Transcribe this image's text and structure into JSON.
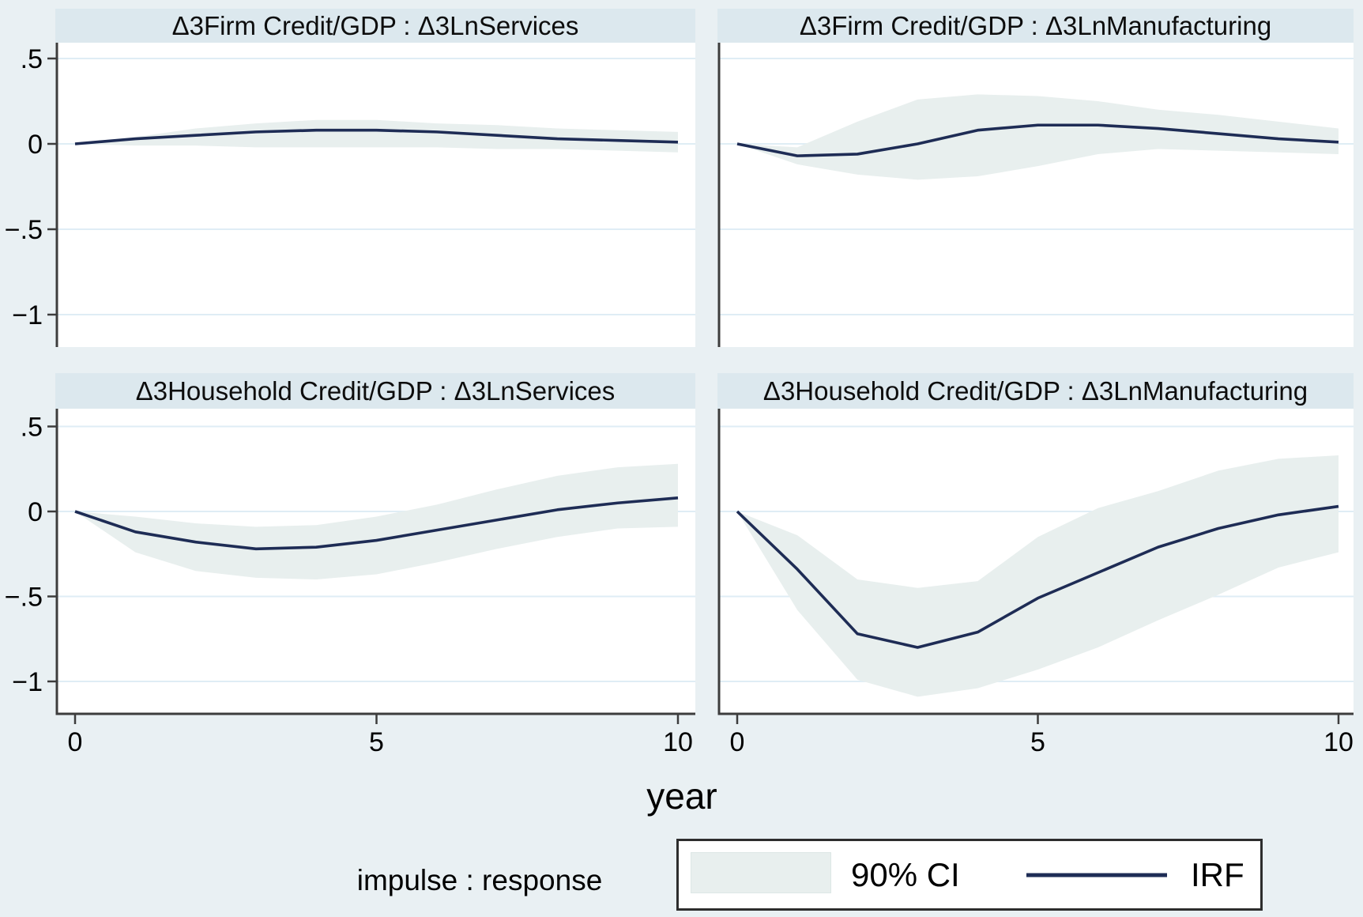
{
  "figure": {
    "caption": "impulse : response",
    "legend": [
      {
        "swatch": "area",
        "label": "90% CI"
      },
      {
        "swatch": "line",
        "label": "IRF"
      }
    ]
  },
  "colors": {
    "page_background": "#e9f0f3",
    "title_band": "#dce8ee",
    "plot_background": "#ffffff",
    "gridline": "#dfedf5",
    "ci_fill": "#e8efee",
    "irf_line": "#1e2c55",
    "axis": "#3d3d3d",
    "text": "#000000",
    "legend_border": "#2d2d2d"
  },
  "chart_data": {
    "type": "area",
    "description": "2x2 grid of impulse response function panels with 90% confidence bands",
    "x": [
      0,
      1,
      2,
      3,
      4,
      5,
      6,
      7,
      8,
      9,
      10
    ],
    "xlabel": "year",
    "x_ticks": [
      0,
      5,
      10
    ],
    "x_tick_labels": [
      "0",
      "5",
      "10"
    ],
    "y_ticks": [
      0.5,
      0,
      -0.5,
      -1
    ],
    "y_tick_labels": [
      ".5",
      "0",
      "−.5",
      "−1"
    ],
    "ylim": [
      -1.19,
      0.6
    ],
    "grid": "horizontal",
    "legend_position": "bottom-right",
    "panels": [
      {
        "title": "Δ3Firm Credit/GDP : Δ3LnServices",
        "impulse": "Δ3Firm Credit/GDP",
        "response": "Δ3LnServices",
        "irf": [
          0,
          0.03,
          0.05,
          0.07,
          0.08,
          0.08,
          0.07,
          0.05,
          0.03,
          0.02,
          0.01
        ],
        "ci_upper": [
          0,
          0.04,
          0.09,
          0.12,
          0.14,
          0.14,
          0.12,
          0.11,
          0.09,
          0.08,
          0.07
        ],
        "ci_lower": [
          0,
          -0.01,
          -0.01,
          -0.02,
          -0.02,
          -0.02,
          -0.02,
          -0.03,
          -0.03,
          -0.04,
          -0.05
        ]
      },
      {
        "title": "Δ3Firm Credit/GDP : Δ3LnManufacturing",
        "impulse": "Δ3Firm Credit/GDP",
        "response": "Δ3LnManufacturing",
        "irf": [
          0,
          -0.07,
          -0.06,
          0.0,
          0.08,
          0.11,
          0.11,
          0.09,
          0.06,
          0.03,
          0.01
        ],
        "ci_upper": [
          0,
          -0.02,
          0.13,
          0.26,
          0.29,
          0.28,
          0.25,
          0.2,
          0.17,
          0.13,
          0.09
        ],
        "ci_lower": [
          0,
          -0.12,
          -0.18,
          -0.21,
          -0.19,
          -0.13,
          -0.06,
          -0.03,
          -0.04,
          -0.05,
          -0.06
        ]
      },
      {
        "title": "Δ3Household Credit/GDP : Δ3LnServices",
        "impulse": "Δ3Household Credit/GDP",
        "response": "Δ3LnServices",
        "irf": [
          0,
          -0.12,
          -0.18,
          -0.22,
          -0.21,
          -0.17,
          -0.11,
          -0.05,
          0.01,
          0.05,
          0.08
        ],
        "ci_upper": [
          0,
          -0.03,
          -0.07,
          -0.09,
          -0.08,
          -0.03,
          0.04,
          0.13,
          0.21,
          0.26,
          0.28
        ],
        "ci_lower": [
          0,
          -0.24,
          -0.35,
          -0.39,
          -0.4,
          -0.37,
          -0.3,
          -0.22,
          -0.15,
          -0.1,
          -0.09
        ]
      },
      {
        "title": "Δ3Household Credit/GDP : Δ3LnManufacturing",
        "impulse": "Δ3Household Credit/GDP",
        "response": "Δ3LnManufacturing",
        "irf": [
          0,
          -0.34,
          -0.72,
          -0.8,
          -0.71,
          -0.51,
          -0.36,
          -0.21,
          -0.1,
          -0.02,
          0.03
        ],
        "ci_upper": [
          0,
          -0.14,
          -0.4,
          -0.45,
          -0.41,
          -0.15,
          0.02,
          0.12,
          0.24,
          0.31,
          0.33
        ],
        "ci_lower": [
          0,
          -0.58,
          -0.99,
          -1.09,
          -1.04,
          -0.93,
          -0.8,
          -0.64,
          -0.49,
          -0.33,
          -0.24
        ]
      }
    ]
  }
}
